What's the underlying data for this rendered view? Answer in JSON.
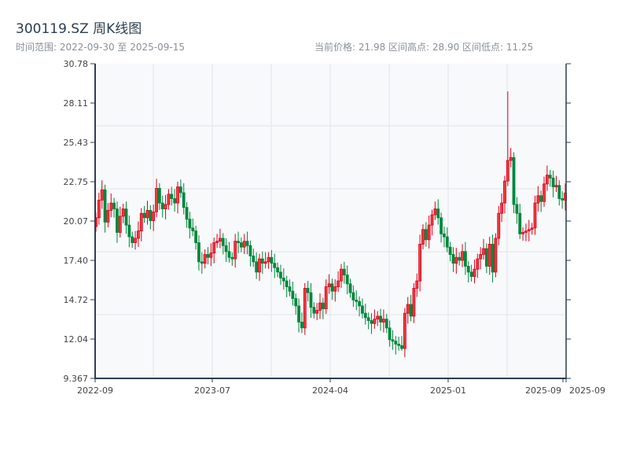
{
  "header": {
    "title": "300119.SZ 周K线图",
    "range_text": "时间范围: 2022-09-30 至 2025-09-15",
    "stats_text": "当前价格: 21.98  区间高点: 28.90  区间低点: 11.25"
  },
  "chart_data": {
    "type": "candlestick",
    "title": "300119.SZ 周K线图",
    "start_date": "2022-09-30",
    "end_date": "2025-09-15",
    "current_price": 21.98,
    "period_high": 28.9,
    "period_low": 11.25,
    "ylim": [
      9.367,
      30.78
    ],
    "y_ticks": [
      "9.367",
      "12.04",
      "14.72",
      "17.40",
      "20.07",
      "22.75",
      "25.43",
      "28.11",
      "30.78"
    ],
    "x_ticks": [
      "2022-09",
      "2023-07",
      "2024-04",
      "2025-01",
      "2025-09",
      "2025-09"
    ],
    "grid": true,
    "colors": {
      "up": "#d9001b",
      "down": "#00873c",
      "axis": "#2c3e50",
      "plot_bg": "#f7f9fb",
      "grid": "#e2e5ea"
    },
    "closes": [
      20.3,
      21.5,
      22.2,
      20.0,
      20.8,
      21.3,
      20.9,
      19.3,
      20.4,
      20.9,
      19.8,
      19.0,
      18.6,
      18.9,
      19.4,
      20.6,
      20.3,
      20.8,
      20.1,
      20.7,
      22.3,
      21.3,
      20.9,
      21.2,
      21.9,
      21.6,
      21.3,
      22.4,
      22.0,
      21.0,
      20.2,
      19.6,
      19.4,
      18.6,
      17.3,
      17.2,
      17.8,
      17.6,
      17.9,
      18.6,
      18.7,
      18.9,
      18.4,
      18.0,
      17.6,
      17.5,
      18.7,
      18.6,
      18.3,
      18.7,
      18.4,
      17.7,
      17.3,
      16.6,
      17.5,
      17.2,
      17.3,
      17.6,
      17.2,
      16.9,
      16.6,
      16.2,
      16.0,
      15.6,
      15.3,
      14.8,
      14.3,
      13.2,
      12.8,
      15.5,
      15.2,
      14.2,
      13.8,
      14.0,
      14.5,
      14.1,
      15.6,
      15.8,
      15.3,
      15.6,
      16.0,
      16.8,
      16.4,
      15.8,
      15.2,
      14.7,
      14.6,
      14.3,
      13.8,
      13.5,
      13.3,
      13.1,
      13.4,
      13.6,
      13.2,
      13.4,
      12.8,
      12.0,
      11.9,
      11.7,
      11.6,
      11.4,
      13.8,
      14.4,
      13.6,
      15.5,
      16.0,
      18.5,
      19.5,
      18.8,
      19.8,
      20.5,
      20.9,
      20.3,
      19.2,
      19.0,
      18.3,
      17.8,
      17.2,
      17.6,
      17.4,
      18.0,
      17.0,
      16.6,
      16.3,
      16.8,
      17.5,
      17.8,
      18.2,
      17.0,
      18.5,
      16.6,
      18.9,
      20.6,
      21.3,
      22.8,
      24.2,
      24.4,
      21.2,
      20.6,
      19.2,
      19.3,
      19.4,
      19.5,
      19.6,
      21.3,
      21.8,
      21.4,
      22.6,
      23.2,
      23.0,
      22.4,
      22.5,
      21.6,
      21.5,
      21.98
    ]
  }
}
